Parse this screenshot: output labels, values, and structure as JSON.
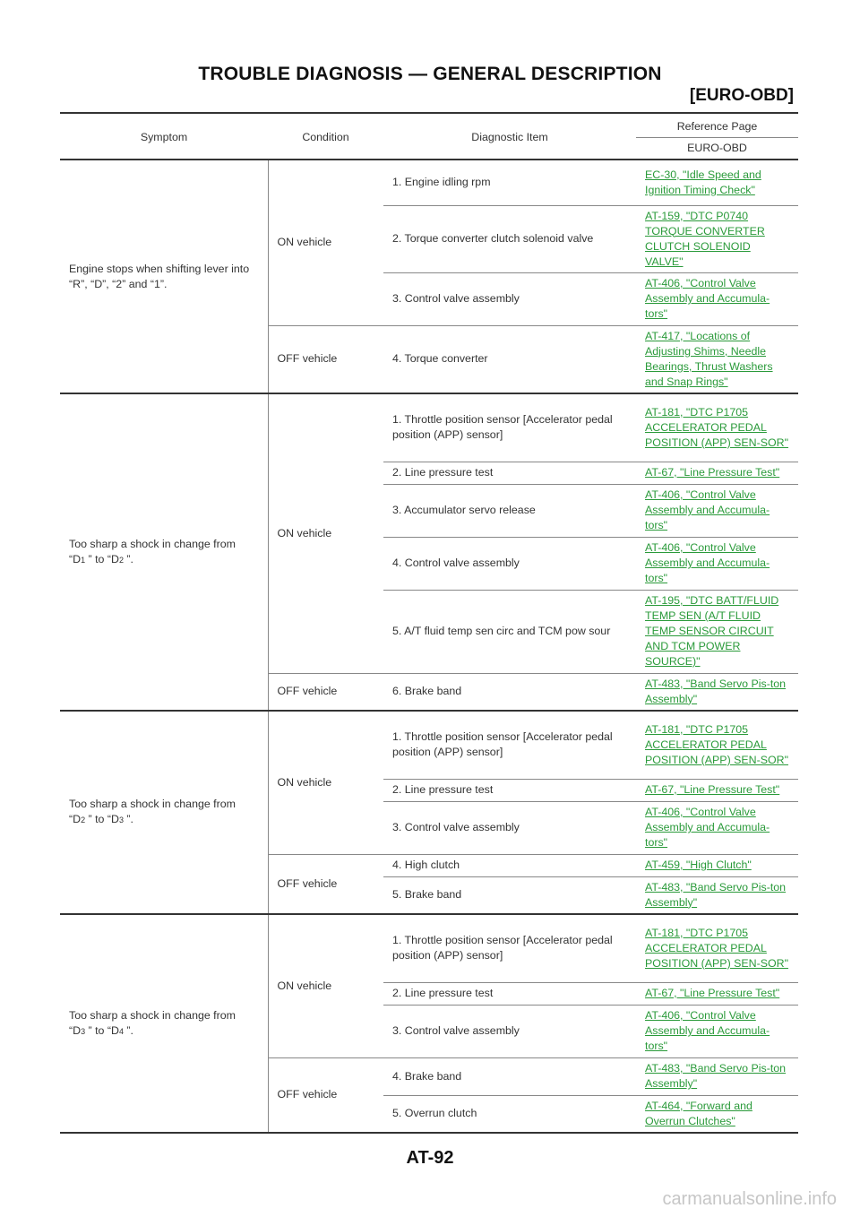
{
  "header": {
    "title": "TROUBLE DIAGNOSIS — GENERAL DESCRIPTION",
    "subtitle": "[EURO-OBD]"
  },
  "table": {
    "columns": {
      "symptom": "Symptom",
      "condition": "Condition",
      "item": "Diagnostic Item",
      "ref": "Reference Page",
      "ref_sub": "EURO-OBD"
    },
    "groups": [
      {
        "symptom": "Engine stops when shifting lever into “R”, “D”, “2” and “1”.",
        "conditions": [
          {
            "label": "ON vehicle",
            "rows": [
              {
                "item": "1. Engine idling rpm",
                "ref": "EC-30, \"Idle Speed and Ignition Timing Check\""
              },
              {
                "item": "2. Torque converter clutch solenoid valve",
                "ref": "AT-159, \"DTC P0740 TORQUE CONVERTER CLUTCH SOLENOID VALVE\""
              },
              {
                "item": "3. Control valve assembly",
                "ref": "AT-406, \"Control Valve Assembly and Accumula-tors\""
              }
            ]
          },
          {
            "label": "OFF vehicle",
            "rows": [
              {
                "item": "4. Torque converter",
                "ref": "AT-417, \"Locations of Adjusting Shims, Needle Bearings, Thrust Washers and Snap Rings\""
              }
            ]
          }
        ]
      },
      {
        "symptom": "Too sharp a shock in change from",
        "from": "1",
        "to": "2",
        "conditions": [
          {
            "label": "ON vehicle",
            "rows": [
              {
                "item": "1. Throttle position sensor [Accelerator pedal position (APP) sensor]",
                "ref": "AT-181, \"DTC P1705 ACCELERATOR PEDAL POSITION (APP) SEN-SOR\""
              },
              {
                "item": "2. Line pressure test",
                "ref": "AT-67, \"Line Pressure Test\""
              },
              {
                "item": "3. Accumulator servo release",
                "ref": "AT-406, \"Control Valve Assembly and Accumula-tors\""
              },
              {
                "item": "4. Control valve assembly",
                "ref": "AT-406, \"Control Valve Assembly and Accumula-tors\""
              },
              {
                "item": "5. A/T fluid temp sen circ and TCM pow sour",
                "ref": "AT-195, \"DTC BATT/FLUID TEMP SEN (A/T FLUID TEMP SENSOR CIRCUIT AND TCM POWER SOURCE)\""
              }
            ]
          },
          {
            "label": "OFF vehicle",
            "rows": [
              {
                "item": "6. Brake band",
                "ref": "AT-483, \"Band Servo Pis-ton Assembly\""
              }
            ]
          }
        ]
      },
      {
        "symptom": "Too sharp a shock in change from",
        "from": "2",
        "to": "3",
        "conditions": [
          {
            "label": "ON vehicle",
            "rows": [
              {
                "item": "1. Throttle position sensor [Accelerator pedal position (APP) sensor]",
                "ref": "AT-181, \"DTC P1705 ACCELERATOR PEDAL POSITION (APP) SEN-SOR\""
              },
              {
                "item": "2. Line pressure test",
                "ref": "AT-67, \"Line Pressure Test\""
              },
              {
                "item": "3. Control valve assembly",
                "ref": "AT-406, \"Control Valve Assembly and Accumula-tors\""
              }
            ]
          },
          {
            "label": "OFF vehicle",
            "rows": [
              {
                "item": "4. High clutch",
                "ref": "AT-459, \"High Clutch\""
              },
              {
                "item": "5. Brake band",
                "ref": "AT-483, \"Band Servo Pis-ton Assembly\""
              }
            ]
          }
        ]
      },
      {
        "symptom": "Too sharp a shock in change from",
        "from": "3",
        "to": "4",
        "conditions": [
          {
            "label": "ON vehicle",
            "rows": [
              {
                "item": "1. Throttle position sensor [Accelerator pedal position (APP) sensor]",
                "ref": "AT-181, \"DTC P1705 ACCELERATOR PEDAL POSITION (APP) SEN-SOR\""
              },
              {
                "item": "2. Line pressure test",
                "ref": "AT-67, \"Line Pressure Test\""
              },
              {
                "item": "3. Control valve assembly",
                "ref": "AT-406, \"Control Valve Assembly and Accumula-tors\""
              }
            ]
          },
          {
            "label": "OFF vehicle",
            "rows": [
              {
                "item": "4. Brake band",
                "ref": "AT-483, \"Band Servo Pis-ton Assembly\""
              },
              {
                "item": "5. Overrun clutch",
                "ref": "AT-464, \"Forward and Overrun Clutches\""
              }
            ]
          }
        ]
      }
    ]
  },
  "footer": {
    "page": "AT-92",
    "watermark": "carmanualsonline.info"
  },
  "colors": {
    "link": "#2a9a3a",
    "text": "#333333",
    "rule": "#333333"
  }
}
